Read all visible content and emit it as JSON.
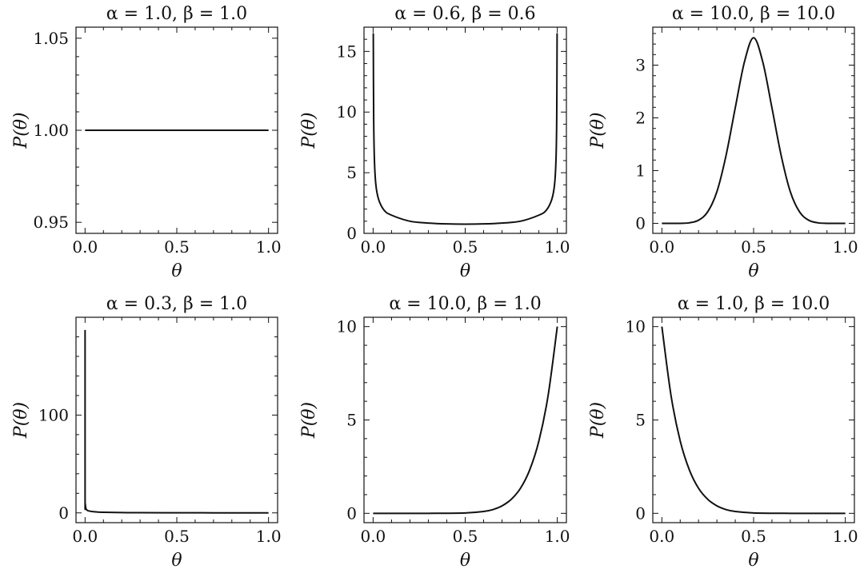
{
  "chart_data": [
    {
      "type": "line",
      "alpha": 1.0,
      "beta": 1.0,
      "title": "α = 1.0, β = 1.0",
      "xlabel": "θ",
      "ylabel": "P(θ)",
      "xlim": [
        0.0,
        1.0
      ],
      "ylim": [
        0.944,
        1.056
      ],
      "xticks": [
        0.0,
        0.5,
        1.0
      ],
      "xtick_labels": [
        "0.0",
        "0.5",
        "1.0"
      ],
      "yticks": [
        0.95,
        1.0,
        1.05
      ],
      "ytick_labels": [
        "0.95",
        "1.00",
        "1.05"
      ],
      "series": [
        {
          "x": [
            0.0,
            0.25,
            0.5,
            0.75,
            1.0
          ],
          "values": [
            1.0,
            1.0,
            1.0,
            1.0,
            1.0
          ]
        }
      ]
    },
    {
      "type": "line",
      "alpha": 0.6,
      "beta": 0.6,
      "title": "α = 0.6, β = 0.6",
      "xlabel": "θ",
      "ylabel": "P(θ)",
      "xlim": [
        0.0,
        1.0
      ],
      "ylim": [
        0,
        17
      ],
      "xticks": [
        0.0,
        0.5,
        1.0
      ],
      "xtick_labels": [
        "0.0",
        "0.5",
        "1.0"
      ],
      "yticks": [
        0,
        5,
        10,
        15
      ],
      "ytick_labels": [
        "0",
        "5",
        "10",
        "15"
      ],
      "series": [
        {
          "x": [
            0.001,
            0.003,
            0.007,
            0.015,
            0.03,
            0.06,
            0.1,
            0.2,
            0.3,
            0.4,
            0.5,
            0.6,
            0.7,
            0.8,
            0.9,
            0.94,
            0.97,
            0.985,
            0.993,
            0.997,
            0.999
          ],
          "values": [
            16.5,
            9.6,
            6.1,
            4.0,
            2.8,
            1.9,
            1.5,
            1.0,
            0.85,
            0.78,
            0.76,
            0.78,
            0.85,
            1.0,
            1.5,
            1.9,
            2.8,
            4.0,
            6.1,
            9.6,
            16.5
          ]
        }
      ]
    },
    {
      "type": "line",
      "alpha": 10.0,
      "beta": 10.0,
      "title": "α = 10.0, β = 10.0",
      "xlabel": "θ",
      "ylabel": "P(θ)",
      "xlim": [
        0.0,
        1.0
      ],
      "ylim": [
        -0.19,
        3.72
      ],
      "xticks": [
        0.0,
        0.5,
        1.0
      ],
      "xtick_labels": [
        "0.0",
        "0.5",
        "1.0"
      ],
      "yticks": [
        0,
        1,
        2,
        3
      ],
      "ytick_labels": [
        "0",
        "1",
        "2",
        "3"
      ],
      "series": [
        {
          "x": [
            0.0,
            0.1,
            0.15,
            0.2,
            0.25,
            0.3,
            0.35,
            0.4,
            0.45,
            0.5,
            0.55,
            0.6,
            0.65,
            0.7,
            0.75,
            0.8,
            0.85,
            0.9,
            1.0
          ],
          "values": [
            0.0,
            0.0,
            0.01,
            0.06,
            0.22,
            0.6,
            1.29,
            2.19,
            3.06,
            3.52,
            3.06,
            2.19,
            1.29,
            0.6,
            0.22,
            0.06,
            0.01,
            0.0,
            0.0
          ]
        }
      ]
    },
    {
      "type": "line",
      "alpha": 0.3,
      "beta": 1.0,
      "title": "α = 0.3, β = 1.0",
      "xlabel": "θ",
      "ylabel": "P(θ)",
      "xlim": [
        0.0,
        1.0
      ],
      "ylim": [
        -10,
        200
      ],
      "xticks": [
        0.0,
        0.5,
        1.0
      ],
      "xtick_labels": [
        "0.0",
        "0.5",
        "1.0"
      ],
      "yticks": [
        0,
        100
      ],
      "ytick_labels": [
        "0",
        "100"
      ],
      "series": [
        {
          "x": [
            1e-05,
            0.0001,
            0.001,
            0.005,
            0.01,
            0.02,
            0.05,
            0.1,
            0.2,
            0.3,
            0.5,
            0.7,
            1.0
          ],
          "values": [
            187,
            19,
            9.5,
            4.3,
            3.0,
            2.0,
            1.1,
            0.6,
            0.3,
            0.2,
            0.1,
            0.06,
            0.0
          ]
        }
      ]
    },
    {
      "type": "line",
      "alpha": 10.0,
      "beta": 1.0,
      "title": "α = 10.0, β = 1.0",
      "xlabel": "θ",
      "ylabel": "P(θ)",
      "xlim": [
        0.0,
        1.0
      ],
      "ylim": [
        -0.5,
        10.5
      ],
      "xticks": [
        0.0,
        0.5,
        1.0
      ],
      "xtick_labels": [
        "0.0",
        "0.5",
        "1.0"
      ],
      "yticks": [
        0,
        5,
        10
      ],
      "ytick_labels": [
        "0",
        "5",
        "10"
      ],
      "series": [
        {
          "x": [
            0.0,
            0.3,
            0.5,
            0.6,
            0.65,
            0.7,
            0.75,
            0.8,
            0.85,
            0.9,
            0.95,
            1.0
          ],
          "values": [
            0.0,
            0.0,
            0.02,
            0.1,
            0.2,
            0.4,
            0.75,
            1.34,
            2.32,
            3.87,
            6.3,
            10.0
          ]
        }
      ]
    },
    {
      "type": "line",
      "alpha": 1.0,
      "beta": 10.0,
      "title": "α = 1.0, β = 10.0",
      "xlabel": "θ",
      "ylabel": "P(θ)",
      "xlim": [
        0.0,
        1.0
      ],
      "ylim": [
        -0.5,
        10.5
      ],
      "xticks": [
        0.0,
        0.5,
        1.0
      ],
      "xtick_labels": [
        "0.0",
        "0.5",
        "1.0"
      ],
      "yticks": [
        0,
        5,
        10
      ],
      "ytick_labels": [
        "0",
        "5",
        "10"
      ],
      "series": [
        {
          "x": [
            0.0,
            0.05,
            0.1,
            0.15,
            0.2,
            0.25,
            0.3,
            0.35,
            0.4,
            0.5,
            0.7,
            1.0
          ],
          "values": [
            10.0,
            6.3,
            3.87,
            2.32,
            1.34,
            0.75,
            0.4,
            0.2,
            0.1,
            0.02,
            0.0,
            0.0
          ]
        }
      ]
    }
  ]
}
